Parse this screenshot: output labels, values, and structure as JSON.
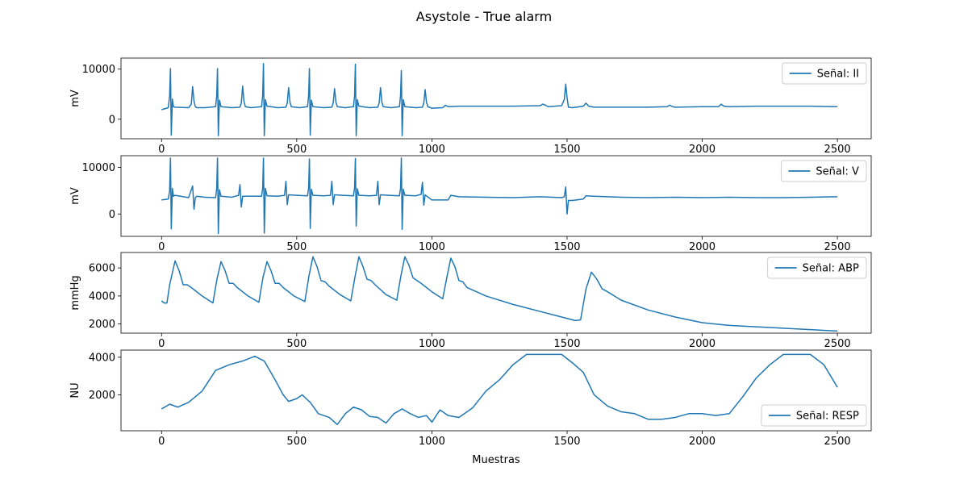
{
  "figure": {
    "title": "Asystole - True alarm",
    "xlabel": "Muestras"
  },
  "colors": {
    "series": "#1f77b4",
    "axis": "#000000",
    "background": "#ffffff",
    "legend_border": "#cccccc"
  },
  "chart_data": [
    {
      "type": "line",
      "ylabel": "mV",
      "xlim": [
        -150,
        2625
      ],
      "ylim": [
        -3900,
        12200
      ],
      "xticks": [
        0,
        500,
        1000,
        1500,
        2000,
        2500
      ],
      "yticks": [
        0,
        10000
      ],
      "legend": "top-right",
      "series": [
        {
          "name": "Señal: II",
          "x": [
            0,
            25,
            30,
            33,
            36,
            40,
            44,
            50,
            100,
            110,
            115,
            120,
            125,
            130,
            160,
            200,
            204,
            207,
            210,
            214,
            220,
            260,
            290,
            295,
            300,
            305,
            310,
            330,
            370,
            374,
            377,
            380,
            384,
            390,
            430,
            460,
            465,
            470,
            475,
            480,
            510,
            540,
            544,
            547,
            550,
            554,
            560,
            600,
            630,
            635,
            640,
            645,
            650,
            680,
            710,
            714,
            717,
            720,
            724,
            730,
            770,
            800,
            805,
            810,
            815,
            820,
            850,
            880,
            884,
            887,
            890,
            894,
            900,
            940,
            965,
            970,
            975,
            980,
            985,
            1000,
            1040,
            1050,
            1060,
            1100,
            1200,
            1300,
            1400,
            1410,
            1420,
            1430,
            1480,
            1490,
            1495,
            1500,
            1505,
            1520,
            1560,
            1570,
            1580,
            1600,
            1700,
            1800,
            1870,
            1880,
            1890,
            1900,
            2000,
            2060,
            2070,
            2080,
            2100,
            2200,
            2300,
            2400,
            2500
          ],
          "y": [
            1900,
            2300,
            4700,
            10100,
            -3200,
            4000,
            2500,
            2400,
            2300,
            3000,
            6500,
            3600,
            2500,
            2300,
            2300,
            2500,
            4600,
            10100,
            -3300,
            3800,
            2500,
            2300,
            2400,
            3200,
            6600,
            3500,
            2500,
            2300,
            2500,
            4700,
            11100,
            -3300,
            3900,
            2600,
            2300,
            2400,
            3200,
            6300,
            3400,
            2500,
            2300,
            2500,
            4700,
            10100,
            -3200,
            3800,
            2500,
            2300,
            2400,
            3300,
            6100,
            3400,
            2500,
            2300,
            2500,
            4700,
            11000,
            -3300,
            3900,
            2600,
            2300,
            2400,
            3300,
            6300,
            3400,
            2500,
            2300,
            2500,
            4700,
            9700,
            -3300,
            3900,
            2500,
            2300,
            2400,
            3200,
            5900,
            3400,
            2500,
            2200,
            2300,
            2800,
            2500,
            2600,
            2600,
            2600,
            2700,
            3000,
            2800,
            2500,
            2700,
            4000,
            7000,
            4300,
            2400,
            2300,
            2600,
            3200,
            2600,
            2400,
            2400,
            2400,
            2500,
            2800,
            2500,
            2400,
            2500,
            2500,
            3000,
            2600,
            2500,
            2600,
            2600,
            2600,
            2500
          ]
        }
      ]
    },
    {
      "type": "line",
      "ylabel": "mV",
      "xlim": [
        -150,
        2625
      ],
      "ylim": [
        -4800,
        12500
      ],
      "xticks": [
        0,
        500,
        1000,
        1500,
        2000,
        2500
      ],
      "yticks": [
        0,
        10000
      ],
      "legend": "top-right",
      "series": [
        {
          "name": "Señal: V",
          "x": [
            0,
            25,
            30,
            33,
            36,
            40,
            44,
            50,
            100,
            115,
            120,
            125,
            130,
            160,
            200,
            204,
            207,
            210,
            214,
            220,
            260,
            285,
            290,
            295,
            300,
            330,
            370,
            374,
            377,
            380,
            384,
            390,
            430,
            455,
            460,
            465,
            470,
            500,
            540,
            544,
            547,
            550,
            554,
            560,
            600,
            625,
            630,
            635,
            640,
            670,
            710,
            714,
            717,
            720,
            724,
            730,
            770,
            795,
            800,
            805,
            810,
            840,
            880,
            884,
            887,
            890,
            894,
            900,
            940,
            960,
            965,
            970,
            975,
            1000,
            1060,
            1070,
            1100,
            1200,
            1300,
            1400,
            1480,
            1490,
            1495,
            1500,
            1505,
            1520,
            1560,
            1570,
            1600,
            1700,
            1800,
            1900,
            2000,
            2100,
            2200,
            2300,
            2400,
            2500
          ],
          "y": [
            3000,
            3200,
            5000,
            12000,
            -3200,
            5500,
            3800,
            4000,
            3500,
            6000,
            1000,
            3500,
            3800,
            3600,
            3500,
            5500,
            12000,
            -4200,
            5200,
            3800,
            3600,
            4000,
            6300,
            1500,
            3800,
            3800,
            3800,
            5500,
            12000,
            -4100,
            5500,
            3900,
            3800,
            4000,
            7000,
            2000,
            4100,
            4000,
            3900,
            5600,
            11800,
            -3100,
            5300,
            4000,
            3900,
            4000,
            7000,
            2000,
            4100,
            4000,
            3900,
            5600,
            11900,
            -2600,
            5400,
            4000,
            3900,
            4000,
            7000,
            2000,
            4100,
            4000,
            3900,
            5500,
            12000,
            -3300,
            5300,
            4000,
            3900,
            4200,
            6800,
            1900,
            4100,
            3000,
            3000,
            4000,
            3700,
            3600,
            3500,
            3700,
            3500,
            3700,
            5800,
            0,
            2900,
            2900,
            3200,
            3900,
            3800,
            3600,
            3500,
            3600,
            3500,
            3600,
            3500,
            3500,
            3600,
            3700
          ]
        }
      ]
    },
    {
      "type": "line",
      "ylabel": "mmHg",
      "xlim": [
        -150,
        2625
      ],
      "ylim": [
        1350,
        7100
      ],
      "xticks": [
        0,
        500,
        1000,
        1500,
        2000,
        2500
      ],
      "yticks": [
        2000,
        4000,
        6000
      ],
      "legend": "top-right",
      "series": [
        {
          "name": "Señal: ABP",
          "x": [
            0,
            10,
            20,
            30,
            50,
            65,
            80,
            95,
            110,
            150,
            190,
            205,
            220,
            235,
            250,
            265,
            280,
            320,
            360,
            375,
            390,
            405,
            420,
            435,
            450,
            490,
            530,
            545,
            560,
            575,
            590,
            605,
            620,
            660,
            700,
            715,
            730,
            745,
            760,
            775,
            790,
            830,
            870,
            885,
            900,
            915,
            930,
            945,
            960,
            1000,
            1040,
            1055,
            1070,
            1085,
            1100,
            1115,
            1130,
            1200,
            1300,
            1400,
            1480,
            1530,
            1550,
            1570,
            1590,
            1610,
            1630,
            1650,
            1700,
            1800,
            1900,
            2000,
            2100,
            2200,
            2300,
            2400,
            2500
          ],
          "y": [
            3650,
            3500,
            3500,
            4800,
            6500,
            5800,
            4800,
            4800,
            4600,
            4000,
            3500,
            5200,
            6450,
            5800,
            4900,
            4900,
            4600,
            4000,
            3550,
            5300,
            6450,
            5800,
            4900,
            4900,
            4600,
            4000,
            3600,
            5400,
            6800,
            6100,
            5100,
            5000,
            4700,
            4100,
            3650,
            5300,
            6800,
            6100,
            5200,
            5100,
            4800,
            4100,
            3700,
            5400,
            6800,
            6200,
            5300,
            5100,
            4900,
            4300,
            3800,
            5300,
            6700,
            6100,
            5100,
            5000,
            4600,
            4000,
            3400,
            2900,
            2500,
            2250,
            2300,
            4500,
            5700,
            5200,
            4500,
            4300,
            3700,
            3000,
            2500,
            2100,
            1900,
            1800,
            1700,
            1600,
            1500
          ]
        }
      ]
    },
    {
      "type": "line",
      "ylabel": "NU",
      "xlim": [
        -150,
        2625
      ],
      "ylim": [
        90,
        4380
      ],
      "xticks": [
        0,
        500,
        1000,
        1500,
        2000,
        2500
      ],
      "yticks": [
        2000,
        4000
      ],
      "legend": "bottom-right",
      "series": [
        {
          "name": "Señal: RESP",
          "x": [
            0,
            30,
            60,
            100,
            150,
            200,
            250,
            300,
            345,
            380,
            420,
            450,
            470,
            500,
            520,
            550,
            580,
            620,
            650,
            680,
            710,
            740,
            770,
            800,
            830,
            860,
            890,
            920,
            950,
            980,
            1000,
            1030,
            1060,
            1100,
            1150,
            1200,
            1250,
            1300,
            1350,
            1400,
            1450,
            1480,
            1520,
            1560,
            1600,
            1650,
            1700,
            1750,
            1800,
            1850,
            1900,
            1950,
            2000,
            2050,
            2100,
            2150,
            2200,
            2250,
            2300,
            2350,
            2400,
            2450,
            2500
          ],
          "y": [
            1250,
            1500,
            1350,
            1600,
            2200,
            3300,
            3600,
            3800,
            4050,
            3800,
            2800,
            2000,
            1650,
            1800,
            2000,
            1600,
            1000,
            800,
            420,
            1000,
            1350,
            1200,
            850,
            800,
            500,
            1000,
            1250,
            1000,
            800,
            900,
            550,
            1200,
            900,
            800,
            1300,
            2200,
            2800,
            3600,
            4150,
            4150,
            4150,
            4150,
            3700,
            3200,
            2000,
            1400,
            1100,
            1000,
            700,
            700,
            800,
            1000,
            1000,
            900,
            1000,
            1900,
            2900,
            3600,
            4150,
            4150,
            4150,
            3600,
            2400
          ]
        }
      ]
    }
  ]
}
